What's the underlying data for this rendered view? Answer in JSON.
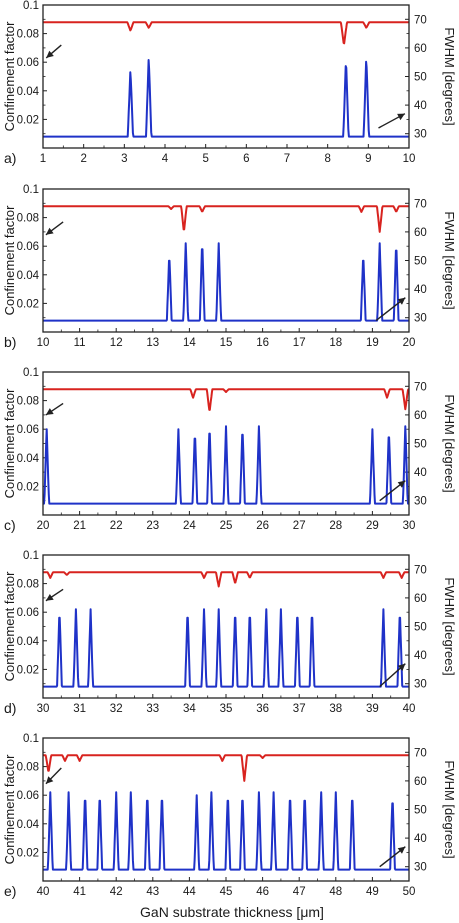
{
  "figure": {
    "xlabel": "GaN substrate thickness [μm]",
    "ylabel_left": "Confinement factor",
    "ylabel_right": "FWHM [degrees]",
    "colors": {
      "confinement": "#1f32c8",
      "fwhm": "#d8231f",
      "axes": "#222222",
      "arrow": "#222222"
    }
  },
  "chart_data": [
    {
      "type": "line",
      "panel_label": "a)",
      "xlim": [
        1,
        10
      ],
      "xticks": [
        1,
        2,
        3,
        4,
        5,
        6,
        7,
        8,
        9,
        10
      ],
      "ylim_left": [
        0,
        0.1
      ],
      "yticks_left": [
        "0.02",
        "0.04",
        "0.06",
        "0.08",
        "0.1"
      ],
      "ylim_right": [
        25,
        75
      ],
      "yticks_right": [
        "30",
        "40",
        "50",
        "60",
        "70"
      ],
      "series": [
        {
          "axis": "left",
          "baseline": 0.008,
          "peaks": [
            [
              3.15,
              0.055
            ],
            [
              3.6,
              0.064
            ],
            [
              8.45,
              0.062
            ],
            [
              8.95,
              0.064
            ]
          ]
        },
        {
          "axis": "right",
          "baseline": 69,
          "dips": [
            [
              3.15,
              66
            ],
            [
              3.6,
              67
            ],
            [
              8.4,
              61
            ],
            [
              8.95,
              67
            ]
          ]
        }
      ],
      "arrows": [
        {
          "points_to": "left",
          "from": [
            1.45,
            0.072
          ],
          "to": [
            1.08,
            0.063
          ]
        },
        {
          "points_to": "right",
          "from": [
            9.25,
            32
          ],
          "to": [
            9.9,
            37
          ]
        }
      ]
    },
    {
      "type": "line",
      "panel_label": "b)",
      "xlim": [
        10,
        20
      ],
      "xticks": [
        10,
        11,
        12,
        13,
        14,
        15,
        16,
        17,
        18,
        19,
        20
      ],
      "ylim_left": [
        0,
        0.1
      ],
      "yticks_left": [
        "0.02",
        "0.04",
        "0.06",
        "0.08",
        "0.1"
      ],
      "ylim_right": [
        25,
        75
      ],
      "yticks_right": [
        "30",
        "40",
        "50",
        "60",
        "70"
      ],
      "series": [
        {
          "axis": "left",
          "baseline": 0.008,
          "peaks": [
            [
              13.45,
              0.055
            ],
            [
              13.9,
              0.062
            ],
            [
              14.35,
              0.064
            ],
            [
              14.8,
              0.062
            ],
            [
              18.75,
              0.055
            ],
            [
              19.2,
              0.062
            ],
            [
              19.65,
              0.063
            ]
          ]
        },
        {
          "axis": "right",
          "baseline": 69,
          "dips": [
            [
              13.5,
              68
            ],
            [
              13.85,
              60
            ],
            [
              14.35,
              67
            ],
            [
              18.7,
              67
            ],
            [
              19.2,
              60
            ],
            [
              19.65,
              67
            ]
          ]
        }
      ],
      "arrows": [
        {
          "points_to": "left",
          "from": [
            10.55,
            0.077
          ],
          "to": [
            10.08,
            0.068
          ]
        },
        {
          "points_to": "right",
          "from": [
            19.1,
            29
          ],
          "to": [
            19.9,
            37
          ]
        }
      ]
    },
    {
      "type": "line",
      "panel_label": "c)",
      "xlim": [
        20,
        30
      ],
      "xticks": [
        20,
        21,
        22,
        23,
        24,
        25,
        26,
        27,
        28,
        29,
        30
      ],
      "ylim_left": [
        0,
        0.1
      ],
      "yticks_left": [
        "0.02",
        "0.04",
        "0.06",
        "0.08",
        "0.1"
      ],
      "ylim_right": [
        25,
        75
      ],
      "yticks_right": [
        "30",
        "40",
        "50",
        "60",
        "70"
      ],
      "series": [
        {
          "axis": "left",
          "baseline": 0.008,
          "peaks": [
            [
              20.1,
              0.06
            ],
            [
              23.7,
              0.06
            ],
            [
              24.15,
              0.059
            ],
            [
              24.55,
              0.063
            ],
            [
              25.0,
              0.062
            ],
            [
              25.45,
              0.062
            ],
            [
              25.9,
              0.062
            ],
            [
              29.0,
              0.06
            ],
            [
              29.45,
              0.06
            ],
            [
              29.9,
              0.062
            ]
          ]
        },
        {
          "axis": "right",
          "baseline": 69,
          "dips": [
            [
              24.1,
              66
            ],
            [
              24.55,
              61
            ],
            [
              25.0,
              68
            ],
            [
              29.4,
              66
            ],
            [
              29.9,
              62
            ]
          ]
        }
      ],
      "arrows": [
        {
          "points_to": "left",
          "from": [
            20.55,
            0.078
          ],
          "to": [
            20.08,
            0.07
          ]
        },
        {
          "points_to": "right",
          "from": [
            29.2,
            30
          ],
          "to": [
            29.9,
            37
          ]
        }
      ]
    },
    {
      "type": "line",
      "panel_label": "d)",
      "xlim": [
        30,
        40
      ],
      "xticks": [
        30,
        31,
        32,
        33,
        34,
        35,
        36,
        37,
        38,
        39,
        40
      ],
      "ylim_left": [
        0,
        0.1
      ],
      "yticks_left": [
        "0.02",
        "0.04",
        "0.06",
        "0.08",
        "0.1"
      ],
      "ylim_right": [
        25,
        75
      ],
      "yticks_right": [
        "30",
        "40",
        "50",
        "60",
        "70"
      ],
      "series": [
        {
          "axis": "left",
          "baseline": 0.008,
          "peaks": [
            [
              30.45,
              0.062
            ],
            [
              30.9,
              0.062
            ],
            [
              31.3,
              0.062
            ],
            [
              33.95,
              0.062
            ],
            [
              34.4,
              0.062
            ],
            [
              34.8,
              0.062
            ],
            [
              35.25,
              0.062
            ],
            [
              35.65,
              0.062
            ],
            [
              36.1,
              0.062
            ],
            [
              36.5,
              0.062
            ],
            [
              36.95,
              0.062
            ],
            [
              37.35,
              0.062
            ],
            [
              39.3,
              0.062
            ],
            [
              39.75,
              0.062
            ]
          ]
        },
        {
          "axis": "right",
          "baseline": 69,
          "dips": [
            [
              30.2,
              67
            ],
            [
              30.65,
              68
            ],
            [
              34.4,
              67
            ],
            [
              34.8,
              64
            ],
            [
              35.25,
              65
            ],
            [
              35.65,
              67
            ],
            [
              39.3,
              67
            ],
            [
              39.8,
              67
            ]
          ]
        }
      ],
      "arrows": [
        {
          "points_to": "left",
          "from": [
            30.55,
            0.076
          ],
          "to": [
            30.08,
            0.068
          ]
        },
        {
          "points_to": "right",
          "from": [
            39.2,
            29
          ],
          "to": [
            39.9,
            37
          ]
        }
      ]
    },
    {
      "type": "line",
      "panel_label": "e)",
      "xlim": [
        40,
        50
      ],
      "xticks": [
        40,
        41,
        42,
        43,
        44,
        45,
        46,
        47,
        48,
        49,
        50
      ],
      "ylim_left": [
        0,
        0.1
      ],
      "yticks_left": [
        "0.02",
        "0.04",
        "0.06",
        "0.08",
        "0.1"
      ],
      "ylim_right": [
        25,
        75
      ],
      "yticks_right": [
        "30",
        "40",
        "50",
        "60",
        "70"
      ],
      "series": [
        {
          "axis": "left",
          "baseline": 0.008,
          "peaks": [
            [
              40.2,
              0.062
            ],
            [
              40.7,
              0.062
            ],
            [
              41.15,
              0.062
            ],
            [
              41.55,
              0.062
            ],
            [
              42.0,
              0.062
            ],
            [
              42.4,
              0.062
            ],
            [
              42.85,
              0.062
            ],
            [
              43.25,
              0.062
            ],
            [
              44.2,
              0.06
            ],
            [
              44.6,
              0.062
            ],
            [
              45.05,
              0.062
            ],
            [
              45.45,
              0.062
            ],
            [
              45.9,
              0.062
            ],
            [
              46.3,
              0.062
            ],
            [
              46.75,
              0.062
            ],
            [
              47.15,
              0.062
            ],
            [
              47.6,
              0.062
            ],
            [
              48.0,
              0.062
            ],
            [
              48.45,
              0.062
            ],
            [
              49.55,
              0.06
            ]
          ]
        },
        {
          "axis": "right",
          "baseline": 69,
          "dips": [
            [
              40.15,
              63
            ],
            [
              40.6,
              67
            ],
            [
              41.0,
              67
            ],
            [
              44.9,
              67
            ],
            [
              45.5,
              60
            ],
            [
              46.0,
              68
            ]
          ]
        }
      ],
      "arrows": [
        {
          "points_to": "left",
          "from": [
            40.5,
            0.079
          ],
          "to": [
            40.08,
            0.068
          ]
        },
        {
          "points_to": "right",
          "from": [
            49.2,
            30
          ],
          "to": [
            49.9,
            37
          ]
        }
      ]
    }
  ]
}
